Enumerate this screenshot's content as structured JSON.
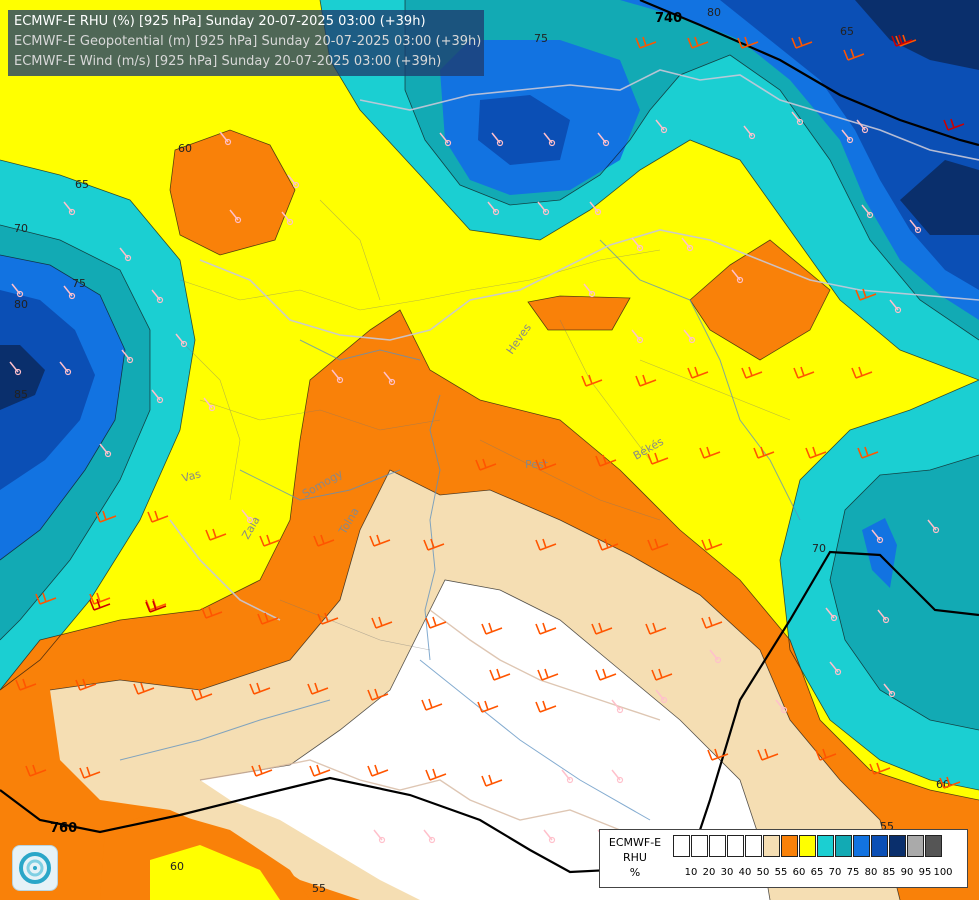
{
  "header": {
    "line1": "ECMWF-E RHU (%) [925 hPa] Sunday 20-07-2025 03:00 (+39h)",
    "line2": "ECMWF-E Geopotential (m) [925 hPa] Sunday 20-07-2025 03:00 (+39h)",
    "line3": "ECMWF-E Wind (m/s) [925 hPa] Sunday 20-07-2025 03:00 (+39h)"
  },
  "legend": {
    "title_lines": [
      "ECMWF-E",
      "RHU",
      "%"
    ],
    "levels": [
      {
        "label": "10",
        "color": "#ffffff"
      },
      {
        "label": "20",
        "color": "#ffffff"
      },
      {
        "label": "30",
        "color": "#ffffff"
      },
      {
        "label": "40",
        "color": "#ffffff"
      },
      {
        "label": "50",
        "color": "#ffffff"
      },
      {
        "label": "55",
        "color": "#f5deb3"
      },
      {
        "label": "60",
        "color": "#f98109"
      },
      {
        "label": "65",
        "color": "#ffff00"
      },
      {
        "label": "70",
        "color": "#1bcfd2"
      },
      {
        "label": "75",
        "color": "#12aab4"
      },
      {
        "label": "80",
        "color": "#1273e1"
      },
      {
        "label": "85",
        "color": "#0b4fb5"
      },
      {
        "label": "90",
        "color": "#0a2f6c"
      },
      {
        "label": "95",
        "color": "#aaaaaa"
      },
      {
        "label": "100",
        "color": "#555555"
      }
    ]
  },
  "contour_labels": {
    "rhu": [
      "80",
      "75",
      "65",
      "60",
      "65",
      "70",
      "75",
      "80",
      "85",
      "70",
      "60",
      "55",
      "60",
      "55"
    ],
    "geopotential": [
      "740",
      "760"
    ]
  },
  "place_labels": [
    "Heves",
    "Pest",
    "Békés",
    "Vas",
    "Zala",
    "Somogy",
    "Tolna"
  ],
  "colors": {
    "isobar": "#000000",
    "wind_barb_calm": "#ffc0cb",
    "wind_barb_moderate": "#ff5500",
    "wind_barb_strong": "#cc0000"
  }
}
